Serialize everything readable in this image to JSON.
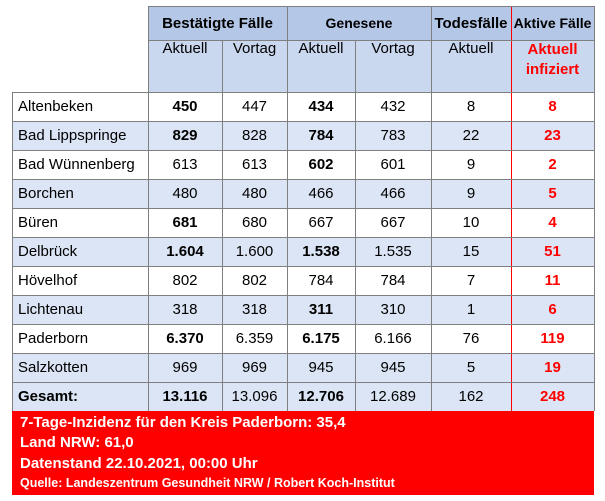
{
  "header": {
    "group_confirmed": "Bestätigte Fälle",
    "group_recovered": "Genesene",
    "group_deaths": "Todesfälle",
    "group_active": "Aktive Fälle",
    "sub_current": "Aktuell",
    "sub_previous": "Vortag",
    "sub_active_line1": "Aktuell",
    "sub_active_line2": "infiziert"
  },
  "rows": [
    {
      "name": "Altenbeken",
      "conf": "450",
      "conf_prev": "447",
      "rec": "434",
      "rec_prev": "432",
      "deaths": "8",
      "active": "8",
      "conf_bold": true,
      "rec_bold": true
    },
    {
      "name": "Bad Lippspringe",
      "conf": "829",
      "conf_prev": "828",
      "rec": "784",
      "rec_prev": "783",
      "deaths": "22",
      "active": "23",
      "conf_bold": true,
      "rec_bold": true
    },
    {
      "name": "Bad Wünnenberg",
      "conf": "613",
      "conf_prev": "613",
      "rec": "602",
      "rec_prev": "601",
      "deaths": "9",
      "active": "2",
      "conf_bold": false,
      "rec_bold": true
    },
    {
      "name": "Borchen",
      "conf": "480",
      "conf_prev": "480",
      "rec": "466",
      "rec_prev": "466",
      "deaths": "9",
      "active": "5",
      "conf_bold": false,
      "rec_bold": false
    },
    {
      "name": "Büren",
      "conf": "681",
      "conf_prev": "680",
      "rec": "667",
      "rec_prev": "667",
      "deaths": "10",
      "active": "4",
      "conf_bold": true,
      "rec_bold": false
    },
    {
      "name": "Delbrück",
      "conf": "1.604",
      "conf_prev": "1.600",
      "rec": "1.538",
      "rec_prev": "1.535",
      "deaths": "15",
      "active": "51",
      "conf_bold": true,
      "rec_bold": true
    },
    {
      "name": "Hövelhof",
      "conf": "802",
      "conf_prev": "802",
      "rec": "784",
      "rec_prev": "784",
      "deaths": "7",
      "active": "11",
      "conf_bold": false,
      "rec_bold": false
    },
    {
      "name": "Lichtenau",
      "conf": "318",
      "conf_prev": "318",
      "rec": "311",
      "rec_prev": "310",
      "deaths": "1",
      "active": "6",
      "conf_bold": false,
      "rec_bold": true
    },
    {
      "name": "Paderborn",
      "conf": "6.370",
      "conf_prev": "6.359",
      "rec": "6.175",
      "rec_prev": "6.166",
      "deaths": "76",
      "active": "119",
      "conf_bold": true,
      "rec_bold": true
    },
    {
      "name": "Salzkotten",
      "conf": "969",
      "conf_prev": "969",
      "rec": "945",
      "rec_prev": "945",
      "deaths": "5",
      "active": "19",
      "conf_bold": false,
      "rec_bold": false
    }
  ],
  "total": {
    "name": "Gesamt:",
    "conf": "13.116",
    "conf_prev": "13.096",
    "rec": "12.706",
    "rec_prev": "12.689",
    "deaths": "162",
    "active": "248"
  },
  "footer": {
    "line1": "7-Tage-Inzidenz für den Kreis Paderborn: 35,4",
    "line2": "Land NRW: 61,0",
    "line3": "Datenstand 22.10.2021, 00:00 Uhr",
    "source": "Quelle: Landeszentrum Gesundheit NRW / Robert Koch-Institut"
  },
  "colors": {
    "header": "#b4c7e7",
    "row_alt": "#dbe5f5",
    "accent_red": "#ff0000"
  }
}
